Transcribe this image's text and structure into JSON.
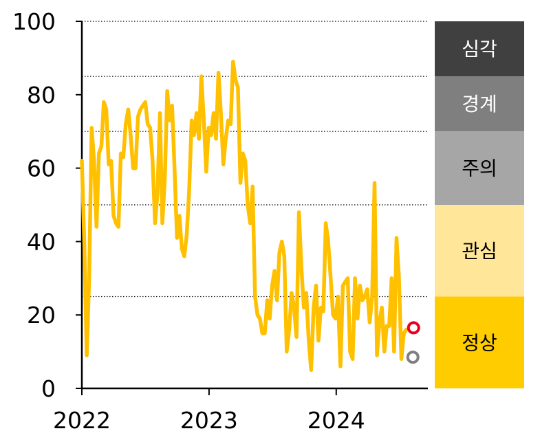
{
  "chart_data": {
    "type": "line",
    "title": "",
    "xlabel": "",
    "ylabel": "",
    "ylim": [
      0,
      100
    ],
    "xlim": [
      "2022-01-01",
      "2024-09-20"
    ],
    "yticks": [
      0,
      20,
      40,
      60,
      80,
      100
    ],
    "xticks": [
      {
        "x": "2022-01-01",
        "label": "2022"
      },
      {
        "x": "2023-01-01",
        "label": "2023"
      },
      {
        "x": "2024-01-01",
        "label": "2024"
      }
    ],
    "grid_lines": [
      25,
      50,
      70,
      85,
      100
    ],
    "grid_style": "dotted",
    "legend": "none",
    "series": [
      {
        "color": "#FFC000",
        "points": [
          [
            "2022-01-01",
            62
          ],
          [
            "2022-01-08",
            40
          ],
          [
            "2022-01-15",
            9
          ],
          [
            "2022-01-22",
            30
          ],
          [
            "2022-01-29",
            71
          ],
          [
            "2022-02-05",
            62
          ],
          [
            "2022-02-12",
            44
          ],
          [
            "2022-02-19",
            64
          ],
          [
            "2022-02-26",
            66
          ],
          [
            "2022-03-05",
            78
          ],
          [
            "2022-03-12",
            76
          ],
          [
            "2022-03-19",
            61
          ],
          [
            "2022-03-26",
            62
          ],
          [
            "2022-04-02",
            47
          ],
          [
            "2022-04-09",
            45
          ],
          [
            "2022-04-16",
            44
          ],
          [
            "2022-04-23",
            64
          ],
          [
            "2022-04-30",
            63
          ],
          [
            "2022-05-07",
            72
          ],
          [
            "2022-05-14",
            76
          ],
          [
            "2022-05-21",
            69
          ],
          [
            "2022-05-28",
            60
          ],
          [
            "2022-06-04",
            60
          ],
          [
            "2022-06-11",
            74
          ],
          [
            "2022-06-18",
            76
          ],
          [
            "2022-06-25",
            77
          ],
          [
            "2022-07-02",
            78
          ],
          [
            "2022-07-09",
            72
          ],
          [
            "2022-07-16",
            71
          ],
          [
            "2022-07-23",
            62
          ],
          [
            "2022-07-30",
            45
          ],
          [
            "2022-08-06",
            53
          ],
          [
            "2022-08-13",
            75
          ],
          [
            "2022-08-20",
            45
          ],
          [
            "2022-08-27",
            57
          ],
          [
            "2022-09-03",
            81
          ],
          [
            "2022-09-10",
            73
          ],
          [
            "2022-09-17",
            77
          ],
          [
            "2022-09-24",
            60
          ],
          [
            "2022-10-01",
            41
          ],
          [
            "2022-10-08",
            47
          ],
          [
            "2022-10-15",
            38
          ],
          [
            "2022-10-22",
            36
          ],
          [
            "2022-10-29",
            42
          ],
          [
            "2022-11-05",
            54
          ],
          [
            "2022-11-12",
            73
          ],
          [
            "2022-11-19",
            69
          ],
          [
            "2022-11-26",
            75
          ],
          [
            "2022-12-03",
            68
          ],
          [
            "2022-12-10",
            85
          ],
          [
            "2022-12-17",
            73
          ],
          [
            "2022-12-24",
            59
          ],
          [
            "2022-12-31",
            71
          ],
          [
            "2023-01-07",
            69
          ],
          [
            "2023-01-14",
            75
          ],
          [
            "2023-01-21",
            68
          ],
          [
            "2023-01-28",
            86
          ],
          [
            "2023-02-04",
            75
          ],
          [
            "2023-02-11",
            61
          ],
          [
            "2023-02-18",
            68
          ],
          [
            "2023-02-25",
            73
          ],
          [
            "2023-03-04",
            72
          ],
          [
            "2023-03-11",
            89
          ],
          [
            "2023-03-18",
            84
          ],
          [
            "2023-03-25",
            82
          ],
          [
            "2023-04-01",
            56
          ],
          [
            "2023-04-08",
            64
          ],
          [
            "2023-04-15",
            62
          ],
          [
            "2023-04-22",
            50
          ],
          [
            "2023-04-29",
            45
          ],
          [
            "2023-05-06",
            55
          ],
          [
            "2023-05-13",
            25
          ],
          [
            "2023-05-20",
            20
          ],
          [
            "2023-05-27",
            19
          ],
          [
            "2023-06-03",
            15
          ],
          [
            "2023-06-10",
            15
          ],
          [
            "2023-06-17",
            24
          ],
          [
            "2023-06-24",
            19
          ],
          [
            "2023-07-01",
            28
          ],
          [
            "2023-07-08",
            32
          ],
          [
            "2023-07-15",
            24
          ],
          [
            "2023-07-22",
            37
          ],
          [
            "2023-07-29",
            40
          ],
          [
            "2023-08-05",
            36
          ],
          [
            "2023-08-12",
            10
          ],
          [
            "2023-08-19",
            16
          ],
          [
            "2023-08-26",
            26
          ],
          [
            "2023-09-02",
            22
          ],
          [
            "2023-09-09",
            14
          ],
          [
            "2023-09-16",
            48
          ],
          [
            "2023-09-23",
            33
          ],
          [
            "2023-09-30",
            22
          ],
          [
            "2023-10-07",
            26
          ],
          [
            "2023-10-14",
            13
          ],
          [
            "2023-10-21",
            5
          ],
          [
            "2023-10-28",
            22
          ],
          [
            "2023-11-04",
            28
          ],
          [
            "2023-11-11",
            13
          ],
          [
            "2023-11-18",
            22
          ],
          [
            "2023-11-25",
            21
          ],
          [
            "2023-12-02",
            45
          ],
          [
            "2023-12-09",
            40
          ],
          [
            "2023-12-16",
            30
          ],
          [
            "2023-12-23",
            20
          ],
          [
            "2023-12-30",
            19
          ],
          [
            "2024-01-06",
            25
          ],
          [
            "2024-01-13",
            6
          ],
          [
            "2024-01-20",
            28
          ],
          [
            "2024-01-27",
            29
          ],
          [
            "2024-02-03",
            30
          ],
          [
            "2024-02-10",
            10
          ],
          [
            "2024-02-17",
            8
          ],
          [
            "2024-02-24",
            30
          ],
          [
            "2024-03-02",
            19
          ],
          [
            "2024-03-09",
            28
          ],
          [
            "2024-03-16",
            24
          ],
          [
            "2024-03-23",
            25
          ],
          [
            "2024-03-30",
            27
          ],
          [
            "2024-04-06",
            18
          ],
          [
            "2024-04-13",
            25
          ],
          [
            "2024-04-20",
            56
          ],
          [
            "2024-04-27",
            9
          ],
          [
            "2024-05-04",
            18
          ],
          [
            "2024-05-11",
            22
          ],
          [
            "2024-05-18",
            10
          ],
          [
            "2024-05-25",
            17
          ],
          [
            "2024-06-01",
            17
          ],
          [
            "2024-06-08",
            30
          ],
          [
            "2024-06-15",
            10
          ],
          [
            "2024-06-22",
            41
          ],
          [
            "2024-06-29",
            30
          ],
          [
            "2024-07-06",
            8
          ],
          [
            "2024-07-13",
            15
          ],
          [
            "2024-07-20",
            16
          ]
        ]
      }
    ],
    "markers": [
      {
        "x": "2024-08-10",
        "y": 16.5,
        "color": "#E8001C"
      },
      {
        "x": "2024-08-08",
        "y": 8.5,
        "color": "#7F7F7F"
      }
    ],
    "bands": [
      {
        "label": "심각",
        "from": 85,
        "to": 100,
        "color": "#404040",
        "text_color": "#FFFFFF"
      },
      {
        "label": "경계",
        "from": 70,
        "to": 85,
        "color": "#7F7F7F",
        "text_color": "#FFFFFF"
      },
      {
        "label": "주의",
        "from": 50,
        "to": 70,
        "color": "#A6A6A6",
        "text_color": "#000000"
      },
      {
        "label": "관심",
        "from": 25,
        "to": 50,
        "color": "#FFE699",
        "text_color": "#000000"
      },
      {
        "label": "정상",
        "from": 0,
        "to": 25,
        "color": "#FFCC00",
        "text_color": "#000000"
      }
    ]
  }
}
